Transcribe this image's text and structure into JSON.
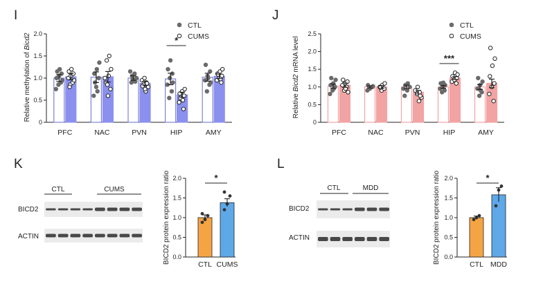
{
  "colors": {
    "ctl_bar_edge": "#7b82d6",
    "cums_blue": "#8b90ee",
    "mrna_pink": "#f2a3a3",
    "orange": "#f5a444",
    "blue2": "#5ea8e8",
    "point": "#6b6b6b"
  },
  "panels": {
    "I": {
      "letter": "I",
      "ylabel_pre": "Relative methylation of ",
      "ylabel_gene": "Bicd2",
      "ylabel_post": ""
    },
    "J": {
      "letter": "J",
      "ylabel_pre": "Relative ",
      "ylabel_gene": "Bicd2",
      "ylabel_post": " mRNA level"
    },
    "K": {
      "letter": "K",
      "blot_row1": "BICD2",
      "blot_row2": "ACTIN",
      "group1": "CTL",
      "group2": "CUMS",
      "ylabel": "BICD2 protein expression ratio"
    },
    "L": {
      "letter": "L",
      "blot_row1": "BICD2",
      "blot_row2": "ACTIN",
      "group1": "CTL",
      "group2": "MDD",
      "ylabel": "BICD2 protein expression ratio"
    }
  },
  "chart_data": [
    {
      "panel": "I",
      "type": "bar",
      "categories": [
        "PFC",
        "NAC",
        "PVN",
        "HIP",
        "AMY"
      ],
      "series": [
        {
          "name": "CTL",
          "values": [
            1.0,
            1.02,
            1.0,
            0.98,
            1.02
          ],
          "errors": [
            0.08,
            0.12,
            0.05,
            0.13,
            0.09
          ]
        },
        {
          "name": "CUMS",
          "values": [
            1.03,
            1.03,
            0.88,
            0.62,
            1.04
          ],
          "errors": [
            0.07,
            0.12,
            0.05,
            0.06,
            0.05
          ]
        }
      ],
      "points": {
        "CTL": [
          [
            0.75,
            0.85,
            0.9,
            1.0,
            1.05,
            1.1,
            1.15,
            1.2,
            0.95
          ],
          [
            0.6,
            0.8,
            1.0,
            1.1,
            1.2,
            1.35,
            0.9,
            0.7
          ],
          [
            0.9,
            0.95,
            1.0,
            1.05,
            1.1,
            1.15,
            0.98,
            0.92
          ],
          [
            0.55,
            0.7,
            0.85,
            1.0,
            1.1,
            1.2,
            1.4,
            0.9
          ],
          [
            0.7,
            0.85,
            0.95,
            1.05,
            1.15,
            1.3,
            1.0,
            0.9
          ]
        ],
        "CUMS": [
          [
            0.85,
            0.9,
            1.0,
            1.05,
            1.1,
            1.15,
            1.2,
            0.95,
            0.8
          ],
          [
            0.6,
            0.75,
            0.9,
            1.05,
            1.2,
            1.4,
            1.5,
            1.0,
            0.85
          ],
          [
            0.7,
            0.8,
            0.85,
            0.9,
            0.95,
            1.0,
            0.88,
            0.82,
            0.75
          ],
          [
            0.3,
            0.45,
            0.55,
            0.6,
            0.65,
            0.7,
            0.75,
            0.55,
            0.5
          ],
          [
            0.9,
            0.95,
            1.0,
            1.05,
            1.1,
            1.15,
            1.2,
            1.08,
            0.98
          ]
        ]
      },
      "ylim": [
        0,
        2.0
      ],
      "yticks": [
        0,
        0.5,
        1.0,
        1.5,
        2.0
      ],
      "significance": [
        {
          "category": "HIP",
          "label": "*"
        }
      ],
      "legend": [
        "CTL",
        "CUMS"
      ]
    },
    {
      "panel": "J",
      "type": "bar",
      "categories": [
        "PFC",
        "NAC",
        "PVN",
        "HIP",
        "AMY"
      ],
      "series": [
        {
          "name": "CTL",
          "values": [
            1.02,
            1.0,
            1.0,
            1.0,
            1.0
          ],
          "errors": [
            0.06,
            0.03,
            0.05,
            0.04,
            0.07
          ]
        },
        {
          "name": "CUMS",
          "values": [
            1.05,
            1.0,
            0.85,
            1.25,
            1.1
          ],
          "errors": [
            0.06,
            0.04,
            0.05,
            0.04,
            0.12
          ]
        }
      ],
      "points": {
        "CTL": [
          [
            0.8,
            0.9,
            1.0,
            1.05,
            1.1,
            1.2,
            1.25,
            0.95
          ],
          [
            0.9,
            0.95,
            1.0,
            1.05,
            0.98,
            1.02
          ],
          [
            0.75,
            0.9,
            1.0,
            1.05,
            1.1,
            0.95
          ],
          [
            0.85,
            0.9,
            0.95,
            1.0,
            1.05,
            1.1,
            1.12
          ],
          [
            0.75,
            0.85,
            0.95,
            1.05,
            1.15,
            1.25,
            0.9
          ]
        ],
        "CUMS": [
          [
            0.9,
            1.0,
            1.05,
            1.1,
            1.15,
            1.2,
            0.95,
            0.85
          ],
          [
            0.9,
            0.95,
            1.0,
            1.05,
            1.1,
            0.98
          ],
          [
            0.6,
            0.7,
            0.8,
            0.85,
            0.9,
            1.0,
            0.75
          ],
          [
            1.1,
            1.15,
            1.2,
            1.25,
            1.3,
            1.4,
            1.35
          ],
          [
            0.6,
            0.8,
            1.0,
            1.1,
            1.3,
            1.6,
            1.8,
            2.1
          ]
        ]
      },
      "ylim": [
        0,
        2.5
      ],
      "yticks": [
        0,
        0.5,
        1.0,
        1.5,
        2.0,
        2.5
      ],
      "significance": [
        {
          "category": "HIP",
          "label": "***"
        }
      ],
      "legend": [
        "CTL",
        "CUMS"
      ]
    },
    {
      "panel": "K",
      "type": "bar",
      "categories": [
        "CTL",
        "CUMS"
      ],
      "values": [
        1.0,
        1.38
      ],
      "errors": [
        0.07,
        0.1
      ],
      "points": [
        [
          0.88,
          0.95,
          1.05,
          1.1
        ],
        [
          1.2,
          1.35,
          1.55,
          1.65
        ]
      ],
      "ylim": [
        0,
        2.0
      ],
      "yticks": [
        0.0,
        0.5,
        1.0,
        1.5,
        2.0
      ],
      "significance": [
        {
          "label": "*"
        }
      ]
    },
    {
      "panel": "L",
      "type": "bar",
      "categories": [
        "CTL",
        "MDD"
      ],
      "values": [
        1.0,
        1.58
      ],
      "errors": [
        0.04,
        0.18
      ],
      "points": [
        [
          0.95,
          1.0,
          1.05
        ],
        [
          1.3,
          1.7,
          1.8
        ]
      ],
      "ylim": [
        0,
        2.0
      ],
      "yticks": [
        0.0,
        0.5,
        1.0,
        1.5,
        2.0
      ],
      "significance": [
        {
          "label": "*"
        }
      ]
    }
  ]
}
